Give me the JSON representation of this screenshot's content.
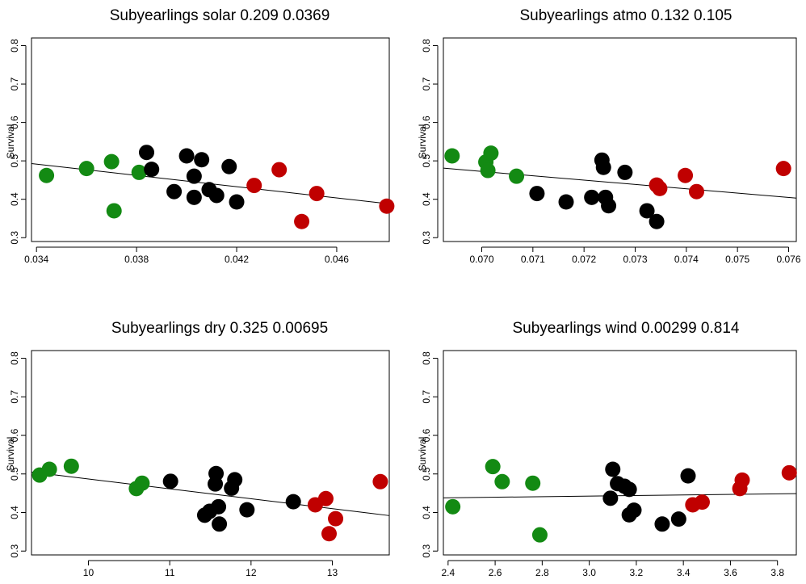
{
  "chart_data": [
    {
      "type": "scatter",
      "title": "Subyearlings solar 0.209 0.0369",
      "xlabel": "",
      "ylabel": "Survival",
      "xlim": [
        0.0338,
        0.0481
      ],
      "ylim": [
        0.29,
        0.82
      ],
      "xticks": [
        0.034,
        0.038,
        0.042,
        0.046
      ],
      "xtick_labels": [
        "0.034",
        "0.038",
        "0.042",
        "0.046"
      ],
      "yticks": [
        0.3,
        0.4,
        0.5,
        0.6,
        0.7,
        0.8
      ],
      "ytick_labels": [
        "0.3",
        "0.4",
        "0.5",
        "0.6",
        "0.7",
        "0.8"
      ],
      "fit_line": {
        "x": [
          0.0338,
          0.0481
        ],
        "y": [
          0.493,
          0.388
        ]
      },
      "series": [
        {
          "color": "#138a13",
          "x": [
            0.0344,
            0.036,
            0.037,
            0.0371,
            0.0381
          ],
          "y": [
            0.462,
            0.48,
            0.498,
            0.37,
            0.47
          ]
        },
        {
          "color": "#000000",
          "x": [
            0.0384,
            0.0386,
            0.0395,
            0.04,
            0.0403,
            0.0403,
            0.0406,
            0.0409,
            0.0412,
            0.0417,
            0.042
          ],
          "y": [
            0.522,
            0.478,
            0.42,
            0.513,
            0.46,
            0.405,
            0.503,
            0.425,
            0.41,
            0.485,
            0.393
          ]
        },
        {
          "color": "#c00000",
          "x": [
            0.0427,
            0.0437,
            0.0446,
            0.0452,
            0.048
          ],
          "y": [
            0.436,
            0.477,
            0.342,
            0.415,
            0.382
          ]
        }
      ]
    },
    {
      "type": "scatter",
      "title": "Subyearlings atmo 0.132 0.105",
      "xlabel": "",
      "ylabel": "Survival",
      "xlim": [
        0.06925,
        0.07615
      ],
      "ylim": [
        0.29,
        0.82
      ],
      "xticks": [
        0.07,
        0.071,
        0.072,
        0.073,
        0.074,
        0.075,
        0.076
      ],
      "xtick_labels": [
        "0.070",
        "0.071",
        "0.072",
        "0.073",
        "0.074",
        "0.075",
        "0.076"
      ],
      "yticks": [
        0.3,
        0.4,
        0.5,
        0.6,
        0.7,
        0.8
      ],
      "ytick_labels": [
        "0.3",
        "0.4",
        "0.5",
        "0.6",
        "0.7",
        "0.8"
      ],
      "fit_line": {
        "x": [
          0.06925,
          0.07615
        ],
        "y": [
          0.481,
          0.403
        ]
      },
      "series": [
        {
          "color": "#138a13",
          "x": [
            0.06942,
            0.07008,
            0.07012,
            0.07018,
            0.07068
          ],
          "y": [
            0.513,
            0.497,
            0.475,
            0.52,
            0.46
          ]
        },
        {
          "color": "#000000",
          "x": [
            0.07108,
            0.07165,
            0.07215,
            0.07235,
            0.07238,
            0.07242,
            0.07248,
            0.0728,
            0.07323,
            0.07342
          ],
          "y": [
            0.415,
            0.393,
            0.405,
            0.502,
            0.483,
            0.405,
            0.383,
            0.47,
            0.37,
            0.342
          ]
        },
        {
          "color": "#c00000",
          "x": [
            0.07342,
            0.07348,
            0.07398,
            0.0742,
            0.0759
          ],
          "y": [
            0.437,
            0.428,
            0.462,
            0.42,
            0.48
          ]
        }
      ]
    },
    {
      "type": "scatter",
      "title": "Subyearlings dry 0.325 0.00695",
      "xlabel": "",
      "ylabel": "Survival",
      "xlim": [
        9.3,
        13.7
      ],
      "ylim": [
        0.29,
        0.82
      ],
      "xticks": [
        10,
        11,
        12,
        13
      ],
      "xtick_labels": [
        "10",
        "11",
        "12",
        "13"
      ],
      "yticks": [
        0.3,
        0.4,
        0.5,
        0.6,
        0.7,
        0.8
      ],
      "ytick_labels": [
        "0.3",
        "0.4",
        "0.5",
        "0.6",
        "0.7",
        "0.8"
      ],
      "fit_line": {
        "x": [
          9.3,
          13.7
        ],
        "y": [
          0.505,
          0.392
        ]
      },
      "series": [
        {
          "color": "#138a13",
          "x": [
            9.4,
            9.52,
            9.79,
            10.59,
            10.66
          ],
          "y": [
            0.497,
            0.512,
            0.52,
            0.462,
            0.476
          ]
        },
        {
          "color": "#000000",
          "x": [
            11.01,
            11.43,
            11.49,
            11.56,
            11.57,
            11.6,
            11.61,
            11.76,
            11.8,
            11.95,
            12.52
          ],
          "y": [
            0.481,
            0.393,
            0.403,
            0.474,
            0.501,
            0.415,
            0.37,
            0.463,
            0.485,
            0.407,
            0.428
          ]
        },
        {
          "color": "#c00000",
          "x": [
            12.79,
            12.92,
            12.96,
            13.04,
            13.59
          ],
          "y": [
            0.42,
            0.436,
            0.345,
            0.384,
            0.48
          ]
        }
      ]
    },
    {
      "type": "scatter",
      "title": "Subyearlings wind 0.00299 0.814",
      "xlabel": "",
      "ylabel": "Survival",
      "xlim": [
        2.38,
        3.88
      ],
      "ylim": [
        0.29,
        0.82
      ],
      "xticks": [
        2.4,
        2.6,
        2.8,
        3.0,
        3.2,
        3.4,
        3.6,
        3.8
      ],
      "xtick_labels": [
        "2.4",
        "2.6",
        "2.8",
        "3.0",
        "3.2",
        "3.4",
        "3.6",
        "3.8"
      ],
      "yticks": [
        0.3,
        0.4,
        0.5,
        0.6,
        0.7,
        0.8
      ],
      "ytick_labels": [
        "0.3",
        "0.4",
        "0.5",
        "0.6",
        "0.7",
        "0.8"
      ],
      "fit_line": {
        "x": [
          2.38,
          3.88
        ],
        "y": [
          0.438,
          0.449
        ]
      },
      "series": [
        {
          "color": "#138a13",
          "x": [
            2.42,
            2.59,
            2.63,
            2.76,
            2.79
          ],
          "y": [
            0.415,
            0.519,
            0.48,
            0.476,
            0.342
          ]
        },
        {
          "color": "#000000",
          "x": [
            3.09,
            3.1,
            3.12,
            3.15,
            3.17,
            3.17,
            3.19,
            3.31,
            3.38,
            3.42
          ],
          "y": [
            0.437,
            0.512,
            0.475,
            0.468,
            0.46,
            0.394,
            0.406,
            0.37,
            0.383,
            0.495
          ]
        },
        {
          "color": "#c00000",
          "x": [
            3.44,
            3.48,
            3.64,
            3.65,
            3.85
          ],
          "y": [
            0.42,
            0.427,
            0.462,
            0.484,
            0.503
          ]
        }
      ]
    }
  ]
}
